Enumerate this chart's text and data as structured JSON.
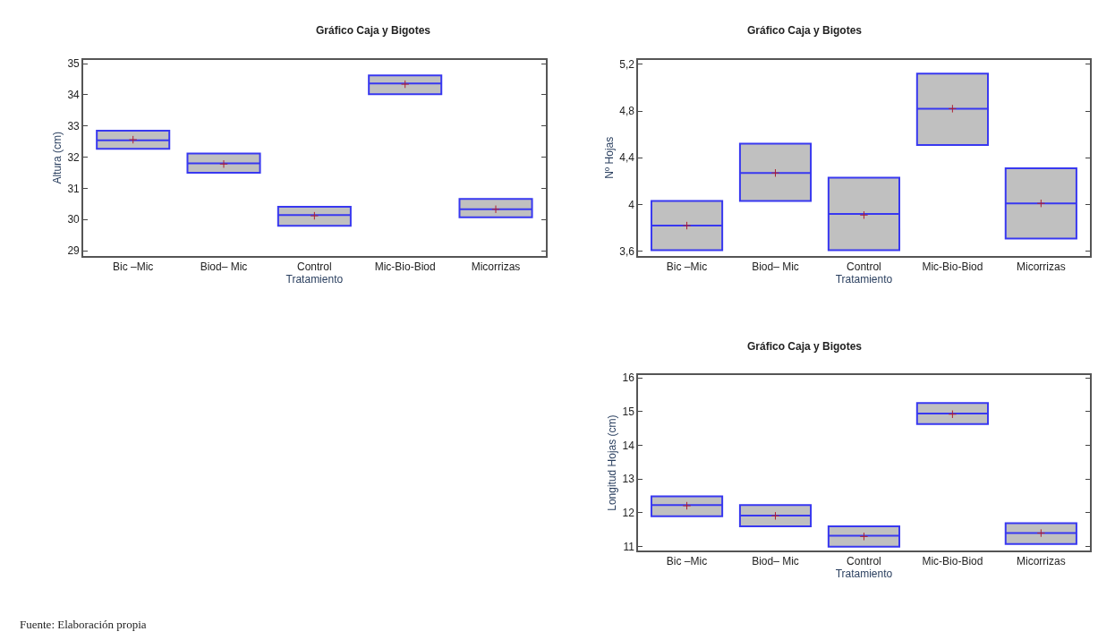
{
  "chart_data": [
    {
      "type": "box",
      "title": "Gráfico Caja y Bigotes",
      "xlabel": "Tratamiento",
      "ylabel": "Altura (cm)",
      "categories": [
        "Bic –Mic",
        "Biod– Mic",
        "Control",
        "Mic-Bio-Biod",
        "Micorrizas"
      ],
      "ylim": [
        28.83,
        35.13
      ],
      "yticks": [
        29,
        30,
        31,
        32,
        33,
        34,
        35
      ],
      "series": [
        {
          "color": "#3838f0",
          "boxes": [
            {
              "low": 32.27,
              "q1": 32.27,
              "median": 32.54,
              "q3": 32.85,
              "high": 32.85,
              "mean": 32.56
            },
            {
              "low": 31.5,
              "q1": 31.5,
              "median": 31.8,
              "q3": 32.12,
              "high": 32.12,
              "mean": 31.78
            },
            {
              "low": 29.8,
              "q1": 29.8,
              "median": 30.14,
              "q3": 30.41,
              "high": 30.41,
              "mean": 30.12
            },
            {
              "low": 34.02,
              "q1": 34.02,
              "median": 34.36,
              "q3": 34.62,
              "high": 34.62,
              "mean": 34.34
            },
            {
              "low": 30.07,
              "q1": 30.07,
              "median": 30.33,
              "q3": 30.66,
              "high": 30.66,
              "mean": 30.33
            }
          ]
        }
      ],
      "annotations": [
        "Fuente: Elaboración propia"
      ]
    },
    {
      "type": "box",
      "title": "Gráfico Caja y Bigotes",
      "xlabel": "Tratamiento",
      "ylabel": "Nº Hojas",
      "categories": [
        "Bic –Mic",
        "Biod– Mic",
        "Control",
        "Mic-Bio-Biod",
        "Micorrizas"
      ],
      "ylim": [
        3.56,
        5.24
      ],
      "yticks": [
        {
          "value": 3.6,
          "label": "3,6"
        },
        4,
        {
          "value": 4.4,
          "label": "4,4"
        },
        {
          "value": 4.8,
          "label": "4,8"
        },
        {
          "value": 5.2,
          "label": "5,2"
        }
      ],
      "series": [
        {
          "color": "#3838f0",
          "boxes": [
            {
              "low": 3.61,
              "q1": 3.61,
              "median": 3.82,
              "q3": 4.03,
              "high": 4.03,
              "mean": 3.82
            },
            {
              "low": 4.03,
              "q1": 4.03,
              "median": 4.27,
              "q3": 4.52,
              "high": 4.52,
              "mean": 4.27
            },
            {
              "low": 3.61,
              "q1": 3.61,
              "median": 3.92,
              "q3": 4.23,
              "high": 4.23,
              "mean": 3.91
            },
            {
              "low": 4.51,
              "q1": 4.51,
              "median": 4.82,
              "q3": 5.12,
              "high": 5.12,
              "mean": 4.82
            },
            {
              "low": 3.71,
              "q1": 3.71,
              "median": 4.01,
              "q3": 4.31,
              "high": 4.31,
              "mean": 4.01
            }
          ]
        }
      ]
    },
    {
      "type": "box",
      "title": "Gráfico Caja y Bigotes",
      "xlabel": "Tratamiento",
      "ylabel": "Longitud Hojas (cm)",
      "categories": [
        "Bic –Mic",
        "Biod– Mic",
        "Control",
        "Mic-Bio-Biod",
        "Micorrizas"
      ],
      "ylim": [
        10.88,
        16.08
      ],
      "yticks": [
        11,
        12,
        13,
        14,
        15,
        16
      ],
      "series": [
        {
          "color": "#3838f0",
          "boxes": [
            {
              "low": 11.9,
              "q1": 11.9,
              "median": 12.23,
              "q3": 12.49,
              "high": 12.49,
              "mean": 12.21
            },
            {
              "low": 11.6,
              "q1": 11.6,
              "median": 11.92,
              "q3": 12.23,
              "high": 12.23,
              "mean": 11.91
            },
            {
              "low": 11.0,
              "q1": 11.0,
              "median": 11.32,
              "q3": 11.6,
              "high": 11.6,
              "mean": 11.3
            },
            {
              "low": 14.63,
              "q1": 14.63,
              "median": 14.94,
              "q3": 15.25,
              "high": 15.25,
              "mean": 14.92
            },
            {
              "low": 11.08,
              "q1": 11.08,
              "median": 11.4,
              "q3": 11.69,
              "high": 11.69,
              "mean": 11.4
            }
          ]
        }
      ]
    }
  ]
}
